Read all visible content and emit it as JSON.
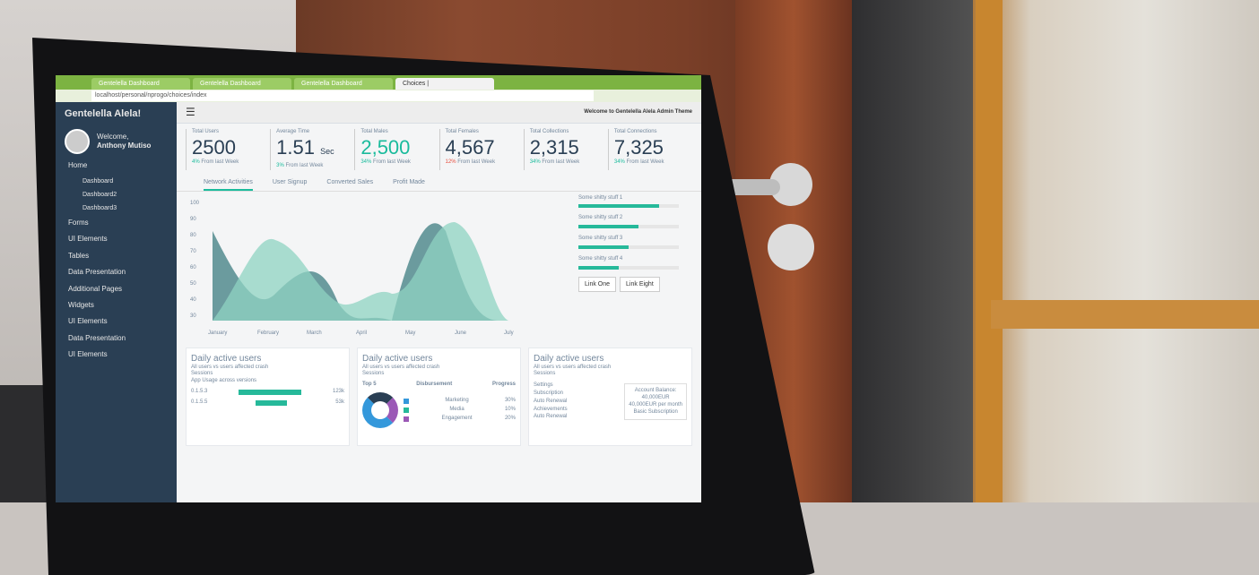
{
  "browser": {
    "tabs": [
      "Gentelella Dashboard",
      "Gentelella Dashboard",
      "Gentelella Dashboard",
      "Choices |"
    ],
    "url": "localhost/personal/nprogo/choices/index"
  },
  "sidebar": {
    "brand": "Gentelella Alela!",
    "welcome": "Welcome,",
    "user": "Anthony Mutiso",
    "items": [
      {
        "label": "Home"
      },
      {
        "label": "Dashboard",
        "sub": true
      },
      {
        "label": "Dashboard2",
        "sub": true
      },
      {
        "label": "Dashboard3",
        "sub": true
      },
      {
        "label": "Forms"
      },
      {
        "label": "UI Elements"
      },
      {
        "label": "Tables"
      },
      {
        "label": "Data Presentation"
      },
      {
        "label": "Additional Pages"
      },
      {
        "label": "Widgets"
      },
      {
        "label": "UI Elements"
      },
      {
        "label": "Data Presentation"
      },
      {
        "label": "UI Elements"
      }
    ]
  },
  "topbar": {
    "menu_icon": "☰",
    "welcome": "Welcome to Gentelella Alela Admin Theme"
  },
  "tiles": [
    {
      "label": "Total Users",
      "value": "2500",
      "change": "4%",
      "note": "From last Week",
      "dir": "up"
    },
    {
      "label": "Average Time",
      "value": "1.51",
      "unit": "Sec",
      "change": "3%",
      "note": "From last Week",
      "dir": "up"
    },
    {
      "label": "Total Males",
      "value": "2,500",
      "change": "34%",
      "note": "From last Week",
      "dir": "up"
    },
    {
      "label": "Total Females",
      "value": "4,567",
      "change": "12%",
      "note": "From last Week",
      "dir": "down"
    },
    {
      "label": "Total Collections",
      "value": "2,315",
      "change": "34%",
      "note": "From last Week",
      "dir": "up"
    },
    {
      "label": "Total Connections",
      "value": "7,325",
      "change": "34%",
      "note": "From last Week",
      "dir": "up"
    }
  ],
  "chart_tabs": [
    "Network Activities",
    "User Signup",
    "Converted Sales",
    "Profit Made"
  ],
  "chart": {
    "y_ticks": [
      "100",
      "90",
      "80",
      "70",
      "60",
      "50",
      "40",
      "30"
    ],
    "x_ticks": [
      "January",
      "February",
      "March",
      "April",
      "May",
      "June",
      "July"
    ]
  },
  "progress": [
    {
      "label": "Some shitty stuff 1",
      "value": 0.8
    },
    {
      "label": "Some shitty stuff 2",
      "value": 0.6
    },
    {
      "label": "Some shitty stuff 3",
      "value": 0.5
    },
    {
      "label": "Some shitty stuff 4",
      "value": 0.4
    }
  ],
  "buttons": [
    "Link One",
    "Link Eight"
  ],
  "panels": [
    {
      "title": "Daily active users",
      "subtitle": "All users vs users affected crash",
      "sessions": "Sessions",
      "heading": "App Usage across versions",
      "bars": [
        {
          "label": "0.1.5.3",
          "value": "123k",
          "fill": 0.7
        },
        {
          "label": "0.1.5.5",
          "value": "53k",
          "fill": 0.35
        }
      ]
    },
    {
      "title": "Daily active users",
      "subtitle": "All users vs users affected crash",
      "sessions": "Sessions",
      "cols": [
        "Top 5",
        "Disbursement",
        "Progress"
      ],
      "legend": [
        {
          "label": "Marketing",
          "value": "30%",
          "color": "#3498db"
        },
        {
          "label": "Media",
          "value": "10%",
          "color": "#26b99a"
        },
        {
          "label": "Engagement",
          "value": "20%",
          "color": "#9b59b6"
        }
      ]
    },
    {
      "title": "Daily active users",
      "subtitle": "All users vs users affected crash",
      "sessions": "Sessions",
      "list": [
        "Settings",
        "Subscription",
        "Auto Renewal",
        "Achievements",
        "Auto Renewal"
      ],
      "balance": {
        "title": "Account Balance:",
        "line1": "40,000EUR",
        "line2": "40,000EUR per month",
        "line3": "Basic Subscription"
      }
    }
  ]
}
